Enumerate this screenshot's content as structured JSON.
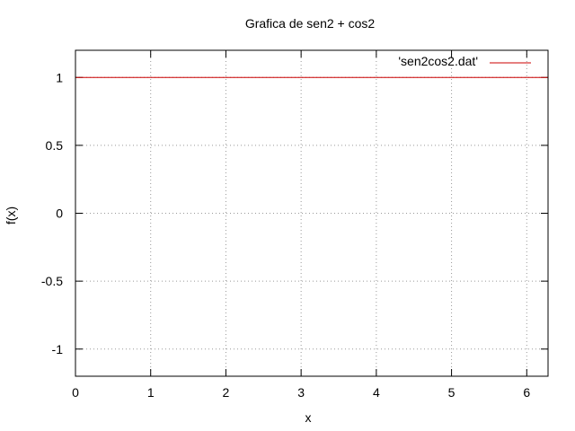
{
  "chart_data": {
    "type": "line",
    "title": "Grafica de sen2 + cos2",
    "xlabel": "x",
    "ylabel": "f(x)",
    "xlim": [
      0,
      6.2832
    ],
    "ylim": [
      -1.2,
      1.2
    ],
    "xticks": [
      0,
      1,
      2,
      3,
      4,
      5,
      6
    ],
    "yticks": [
      1,
      0.5,
      0,
      -0.5,
      -1
    ],
    "ytick_labels": [
      "1",
      "0.5",
      "0",
      "-0.5",
      "-1"
    ],
    "grid": true,
    "legend_position": "top-right",
    "series": [
      {
        "name": "'sen2cos2.dat'",
        "color": "#cc0000",
        "x": [
          0,
          6.2832
        ],
        "y": [
          1,
          1
        ]
      }
    ]
  }
}
